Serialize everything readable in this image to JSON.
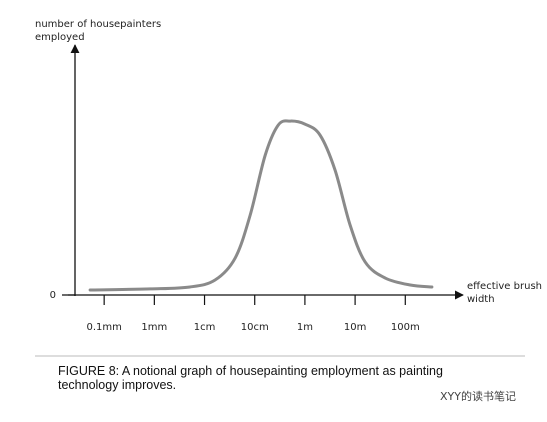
{
  "chart_data": {
    "type": "line",
    "y_label": "number of housepainters employed",
    "x_label": "effective brush width",
    "caption": "FIGURE 8: A notional graph of housepainting employment as painting technology improves.",
    "watermark": "XYY的读书笔记",
    "x": [
      -4.28,
      -3.08,
      -2.29,
      -1.79,
      -1.39,
      -1.09,
      -0.79,
      -0.53,
      -0.29,
      0.0,
      0.3,
      0.6,
      0.9,
      1.2,
      1.6,
      2.1,
      2.53
    ],
    "series": [
      {
        "color": "#8a8a8a",
        "values": [
          2.8,
          3.4,
          4.5,
          8.4,
          20.7,
          44.8,
          78.4,
          95.2,
          97.4,
          95.7,
          89.6,
          70,
          39.2,
          18.5,
          9.5,
          5.6,
          4.5
        ]
      }
    ],
    "xlim": [
      -4.84,
      3.13
    ],
    "xticks": [
      {
        "value": -4,
        "label": "0.1mm"
      },
      {
        "value": -3,
        "label": "1mm"
      },
      {
        "value": -2,
        "label": "1cm"
      },
      {
        "value": -1,
        "label": "10cm"
      },
      {
        "value": 0,
        "label": "1m"
      },
      {
        "value": 1,
        "label": "10m"
      },
      {
        "value": 2,
        "label": "100m"
      }
    ],
    "ylim": [
      0,
      140
    ],
    "yticks": [
      0
    ]
  }
}
